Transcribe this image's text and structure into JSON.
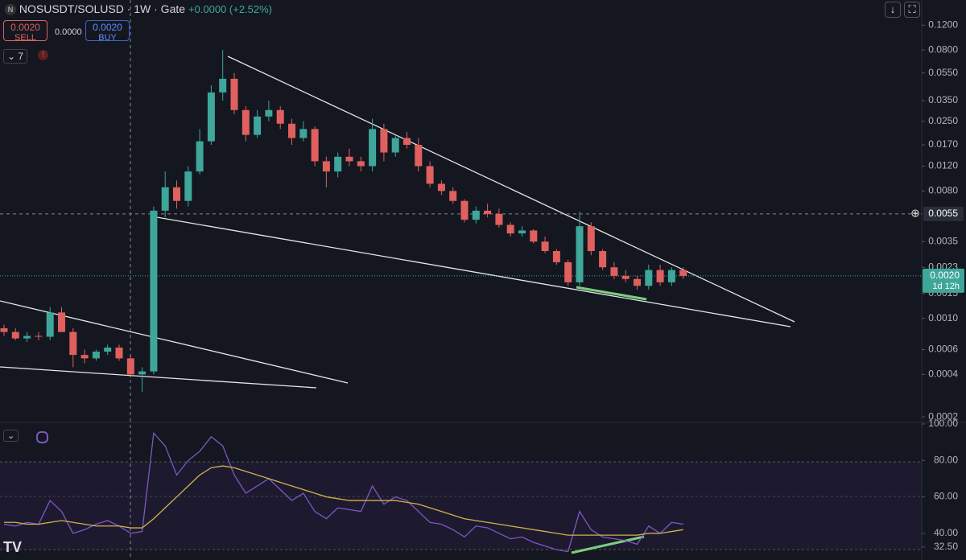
{
  "header": {
    "symbol": "NOSUSDT/SOLUSD · 1W · Gate",
    "change": "+0.0000 (+2.52%)",
    "sell": {
      "price": "0.0020",
      "label": "SELL"
    },
    "spread": "0.0000",
    "buy": {
      "price": "0.0020",
      "label": "BUY"
    },
    "indicators": "7"
  },
  "chart_data": [
    {
      "type": "candlestick",
      "log_scale": true,
      "colors": {
        "up": "#3fa69a",
        "down": "#e0605f"
      },
      "ylim": [
        0.00019,
        0.181
      ],
      "yticks": [
        {
          "value": 0.12,
          "label": "0.1200"
        },
        {
          "value": 0.08,
          "label": "0.0800"
        },
        {
          "value": 0.055,
          "label": "0.0550"
        },
        {
          "value": 0.035,
          "label": "0.0350"
        },
        {
          "value": 0.025,
          "label": "0.0250"
        },
        {
          "value": 0.017,
          "label": "0.0170"
        },
        {
          "value": 0.012,
          "label": "0.0120"
        },
        {
          "value": 0.008,
          "label": "0.0080"
        },
        {
          "value": 0.0035,
          "label": "0.0035"
        },
        {
          "value": 0.0023,
          "label": "0.0023"
        },
        {
          "value": 0.0015,
          "label": "0.0015"
        },
        {
          "value": 0.001,
          "label": "0.0010"
        },
        {
          "value": 0.0006,
          "label": "0.0006"
        },
        {
          "value": 0.0004,
          "label": "0.0004"
        },
        {
          "value": 0.0002,
          "label": "0.0002"
        }
      ],
      "price_label": {
        "value": 0.002,
        "label": "0.0020",
        "countdown": "1d 12h"
      },
      "crosshair_label": {
        "value": 0.0055,
        "label": "0.0055"
      },
      "candles": [
        [
          0.00085,
          0.0009,
          0.00075,
          0.0008
        ],
        [
          0.0008,
          0.00085,
          0.0007,
          0.00072
        ],
        [
          0.00072,
          0.0008,
          0.00068,
          0.00075
        ],
        [
          0.00075,
          0.0008,
          0.0007,
          0.00074
        ],
        [
          0.00074,
          0.0012,
          0.0007,
          0.0011
        ],
        [
          0.0011,
          0.0012,
          0.0008,
          0.0008
        ],
        [
          0.0008,
          0.00085,
          0.00045,
          0.00055
        ],
        [
          0.00055,
          0.0006,
          0.00048,
          0.00052
        ],
        [
          0.00052,
          0.0006,
          0.0005,
          0.00058
        ],
        [
          0.00058,
          0.00065,
          0.00055,
          0.00062
        ],
        [
          0.00062,
          0.00065,
          0.0005,
          0.00052
        ],
        [
          0.00052,
          0.00055,
          0.00038,
          0.0004
        ],
        [
          0.0004,
          0.00045,
          0.0003,
          0.00042
        ],
        [
          0.00042,
          0.0062,
          0.0004,
          0.0058
        ],
        [
          0.0058,
          0.011,
          0.0052,
          0.0085
        ],
        [
          0.0085,
          0.0095,
          0.006,
          0.0068
        ],
        [
          0.0068,
          0.012,
          0.0062,
          0.011
        ],
        [
          0.011,
          0.022,
          0.0105,
          0.018
        ],
        [
          0.018,
          0.045,
          0.017,
          0.04
        ],
        [
          0.04,
          0.08,
          0.035,
          0.05
        ],
        [
          0.05,
          0.055,
          0.028,
          0.03
        ],
        [
          0.03,
          0.032,
          0.018,
          0.02
        ],
        [
          0.02,
          0.03,
          0.019,
          0.027
        ],
        [
          0.027,
          0.035,
          0.025,
          0.03
        ],
        [
          0.03,
          0.032,
          0.022,
          0.024
        ],
        [
          0.024,
          0.026,
          0.017,
          0.019
        ],
        [
          0.019,
          0.025,
          0.018,
          0.022
        ],
        [
          0.022,
          0.023,
          0.012,
          0.013
        ],
        [
          0.013,
          0.014,
          0.0085,
          0.011
        ],
        [
          0.011,
          0.015,
          0.01,
          0.014
        ],
        [
          0.014,
          0.016,
          0.012,
          0.013
        ],
        [
          0.013,
          0.014,
          0.011,
          0.012
        ],
        [
          0.012,
          0.026,
          0.011,
          0.022
        ],
        [
          0.022,
          0.024,
          0.013,
          0.015
        ],
        [
          0.015,
          0.02,
          0.014,
          0.019
        ],
        [
          0.019,
          0.021,
          0.016,
          0.017
        ],
        [
          0.017,
          0.019,
          0.011,
          0.012
        ],
        [
          0.012,
          0.013,
          0.0085,
          0.009
        ],
        [
          0.009,
          0.0095,
          0.0075,
          0.008
        ],
        [
          0.008,
          0.0085,
          0.0065,
          0.0068
        ],
        [
          0.0068,
          0.007,
          0.0048,
          0.005
        ],
        [
          0.005,
          0.0062,
          0.0047,
          0.0058
        ],
        [
          0.0058,
          0.0065,
          0.0052,
          0.0055
        ],
        [
          0.0055,
          0.006,
          0.0044,
          0.0046
        ],
        [
          0.0046,
          0.0048,
          0.0038,
          0.004
        ],
        [
          0.004,
          0.0045,
          0.0038,
          0.0042
        ],
        [
          0.0042,
          0.0043,
          0.0034,
          0.0035
        ],
        [
          0.0035,
          0.0038,
          0.0029,
          0.003
        ],
        [
          0.003,
          0.0031,
          0.0024,
          0.0025
        ],
        [
          0.0025,
          0.0026,
          0.0017,
          0.0018
        ],
        [
          0.0018,
          0.0057,
          0.0017,
          0.0045
        ],
        [
          0.0045,
          0.0048,
          0.0028,
          0.003
        ],
        [
          0.003,
          0.0031,
          0.0022,
          0.0023
        ],
        [
          0.0023,
          0.0025,
          0.0019,
          0.002
        ],
        [
          0.002,
          0.0022,
          0.0018,
          0.0019
        ],
        [
          0.0019,
          0.002,
          0.0016,
          0.0017
        ],
        [
          0.0017,
          0.0024,
          0.0016,
          0.0022
        ],
        [
          0.0022,
          0.0024,
          0.0017,
          0.0018
        ],
        [
          0.0018,
          0.0023,
          0.0017,
          0.0022
        ],
        [
          0.0022,
          0.0023,
          0.0019,
          0.002
        ]
      ]
    },
    {
      "type": "line",
      "ylim": [
        28,
        100
      ],
      "yticks": [
        {
          "value": 100,
          "label": "100.00"
        },
        {
          "value": 80,
          "label": "80.00"
        },
        {
          "value": 60,
          "label": "60.00"
        },
        {
          "value": 40,
          "label": "40.00"
        },
        {
          "value": 32.5,
          "label": "32.50"
        }
      ],
      "series": [
        {
          "color": "#7e57c2",
          "values": [
            45,
            44,
            46,
            45,
            58,
            52,
            40,
            42,
            45,
            47,
            44,
            40,
            41,
            95,
            88,
            72,
            80,
            85,
            93,
            88,
            72,
            62,
            66,
            70,
            64,
            58,
            62,
            52,
            48,
            54,
            53,
            52,
            66,
            56,
            60,
            58,
            52,
            46,
            45,
            42,
            38,
            44,
            43,
            40,
            37,
            38,
            35,
            33,
            31,
            30,
            52,
            42,
            38,
            37,
            36,
            34,
            44,
            40,
            46,
            45
          ]
        },
        {
          "color": "#d4b04a",
          "values": [
            46,
            46,
            45,
            45,
            46,
            47,
            46,
            45,
            44,
            44,
            44,
            43,
            43,
            48,
            54,
            60,
            66,
            72,
            76,
            77,
            76,
            74,
            72,
            70,
            68,
            66,
            64,
            62,
            60,
            59,
            58,
            58,
            58,
            58,
            58,
            57,
            56,
            54,
            52,
            50,
            48,
            47,
            46,
            45,
            44,
            43,
            42,
            41,
            40,
            39,
            39,
            39,
            39,
            39,
            39,
            39,
            40,
            40,
            41,
            42
          ]
        }
      ]
    }
  ]
}
